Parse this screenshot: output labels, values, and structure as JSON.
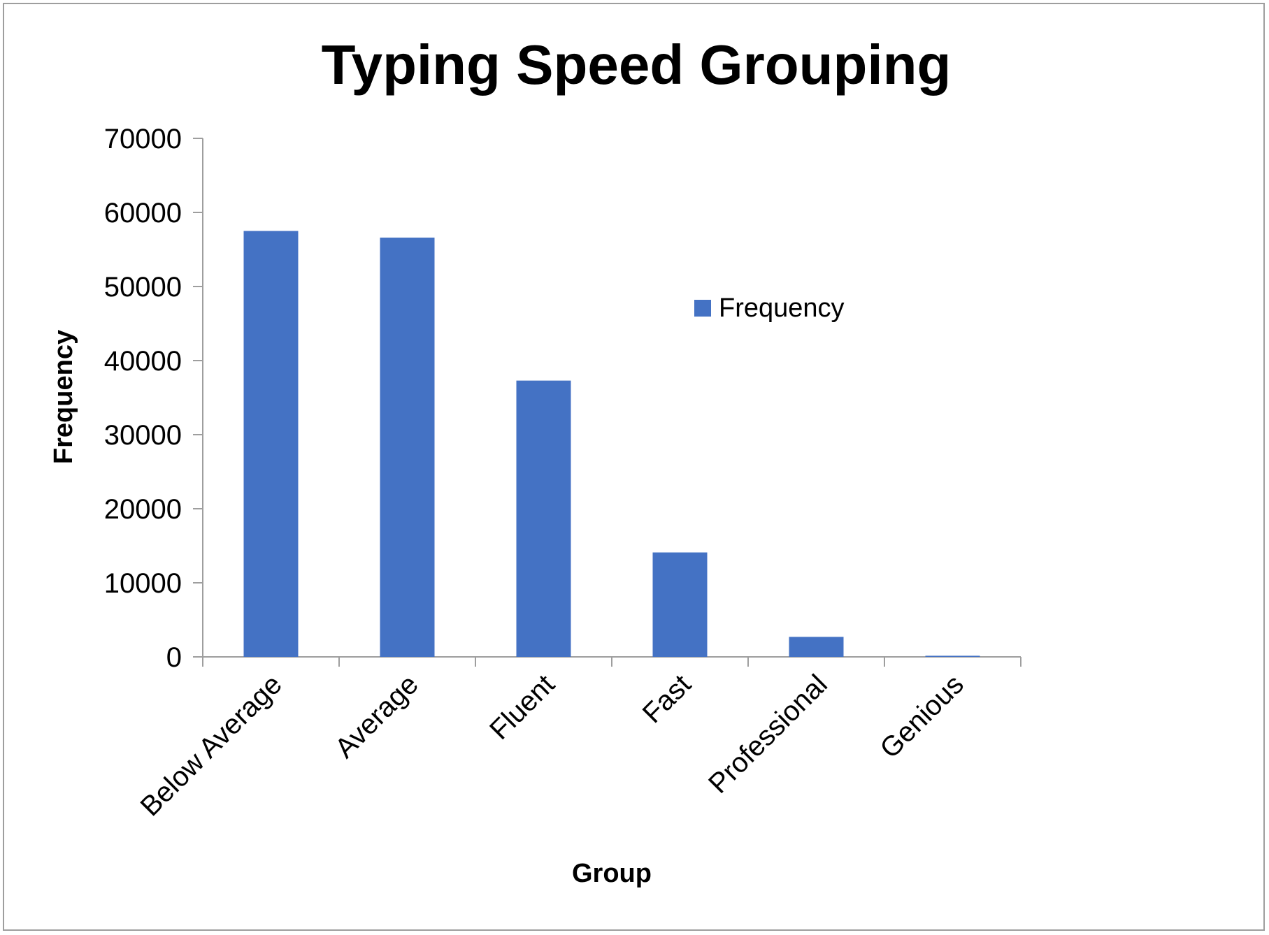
{
  "chart_data": {
    "type": "bar",
    "title": "Typing Speed Grouping",
    "xlabel": "Group",
    "ylabel": "Frequency",
    "categories": [
      "Below Average",
      "Average",
      "Fluent",
      "Fast",
      "Professional",
      "Genious"
    ],
    "series": [
      {
        "name": "Frequency",
        "values": [
          57500,
          56600,
          37300,
          14100,
          2700,
          150
        ]
      }
    ],
    "ylim": [
      0,
      70000
    ],
    "yticks": [
      "0",
      "10000",
      "20000",
      "30000",
      "40000",
      "50000",
      "60000",
      "70000"
    ],
    "grid": false,
    "legend_position": "right",
    "colors": {
      "bar": "#4472C4",
      "axis": "#9e9e9e",
      "frame": "#9e9e9e"
    }
  }
}
